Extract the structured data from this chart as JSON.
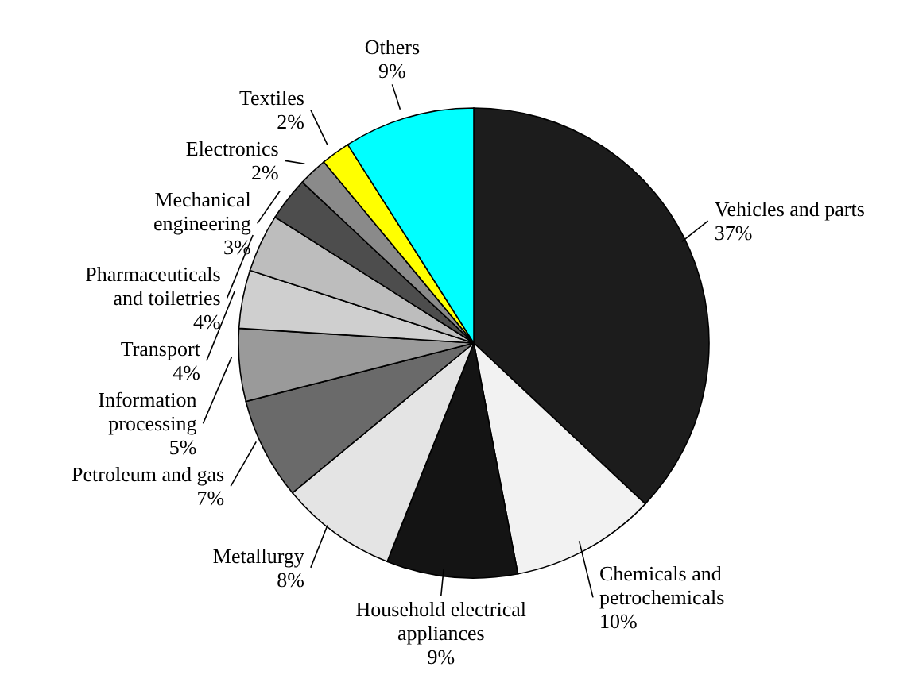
{
  "chart_data": {
    "type": "pie",
    "categories": [
      "Vehicles and parts",
      "Chemicals and petrochemicals",
      "Household electrical appliances",
      "Metallurgy",
      "Petroleum and gas",
      "Information processing",
      "Transport",
      "Pharmaceuticals and toiletries",
      "Mechanical engineering",
      "Electronics",
      "Textiles",
      "Others"
    ],
    "values": [
      37,
      10,
      9,
      8,
      7,
      5,
      4,
      4,
      3,
      2,
      2,
      9
    ],
    "value_labels": [
      "37%",
      "10%",
      "9%",
      "8%",
      "7%",
      "5%",
      "4%",
      "4%",
      "3%",
      "2%",
      "2%",
      "9%"
    ],
    "colors": [
      "#1c1c1c",
      "#f2f2f2",
      "#141414",
      "#e4e4e4",
      "#6a6a6a",
      "#9a9a9a",
      "#cfcfcf",
      "#bdbdbd",
      "#4d4d4d",
      "#8a8a8a",
      "#ffff00",
      "#00ffff"
    ]
  }
}
